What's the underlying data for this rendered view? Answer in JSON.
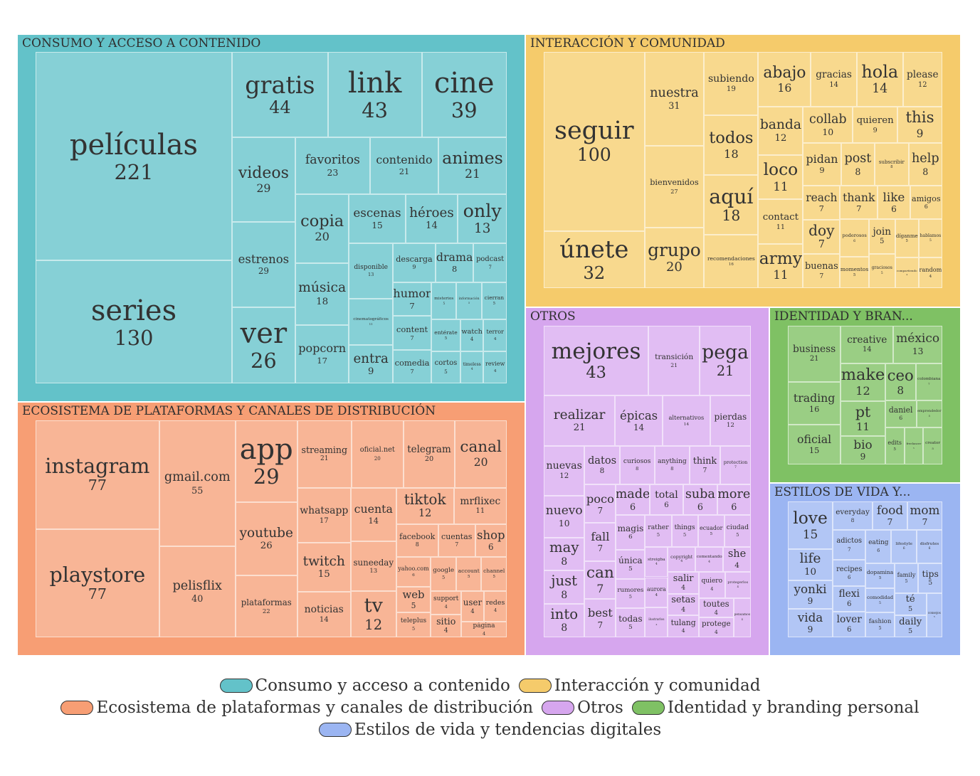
{
  "chart_data": {
    "type": "treemap",
    "legend_position": "bottom",
    "groups": [
      {
        "name": "CONSUMO Y ACCESO A CONTENIDO",
        "legend": "Consumo y acceso a contenido",
        "color": "#63c2c9",
        "cell_color": "#86d0d6",
        "items": [
          {
            "label": "películas",
            "value": 221
          },
          {
            "label": "series",
            "value": 130
          },
          {
            "label": "gratis",
            "value": 44
          },
          {
            "label": "link",
            "value": 43
          },
          {
            "label": "cine",
            "value": 39
          },
          {
            "label": "ver",
            "value": 26
          },
          {
            "label": "favoritos",
            "value": 23
          },
          {
            "label": "videos",
            "value": 29
          },
          {
            "label": "estrenos",
            "value": 29
          },
          {
            "label": "contenido",
            "value": 21
          },
          {
            "label": "animes",
            "value": 21
          },
          {
            "label": "copia",
            "value": 20
          },
          {
            "label": "música",
            "value": 18
          },
          {
            "label": "popcorn",
            "value": 17
          },
          {
            "label": "escenas",
            "value": 15
          },
          {
            "label": "entra",
            "value": 9
          },
          {
            "label": "descarga",
            "value": 9
          },
          {
            "label": "drama",
            "value": 8
          },
          {
            "label": "podcast",
            "value": 7
          },
          {
            "label": "humor",
            "value": 7
          },
          {
            "label": "content",
            "value": 7
          },
          {
            "label": "comedia",
            "value": 7
          },
          {
            "label": "héroes",
            "value": 14
          },
          {
            "label": "only",
            "value": 13
          },
          {
            "label": "misterios",
            "value": 5
          },
          {
            "label": "información",
            "value": 5
          },
          {
            "label": "cierran",
            "value": 5
          },
          {
            "label": "watch",
            "value": 4
          },
          {
            "label": "cinematográficos",
            "value": 11
          },
          {
            "label": "disponible",
            "value": 13
          },
          {
            "label": "entérate",
            "value": 5
          },
          {
            "label": "cortos",
            "value": 5
          },
          {
            "label": "terror",
            "value": 4
          },
          {
            "label": "timeless",
            "value": 4
          },
          {
            "label": "review",
            "value": 4
          }
        ]
      },
      {
        "name": "INTERACCIÓN Y COMUNIDAD",
        "legend": "Interacción y comunidad",
        "color": "#f5cb6b",
        "cell_color": "#f8d98e",
        "items": [
          {
            "label": "seguir",
            "value": 100
          },
          {
            "label": "recomendaciones",
            "value": 16
          },
          {
            "label": "todos",
            "value": 18
          },
          {
            "label": "aquí",
            "value": 18
          },
          {
            "label": "gracias",
            "value": 14
          },
          {
            "label": "please",
            "value": 12
          },
          {
            "label": "banda",
            "value": 12
          },
          {
            "label": "únete",
            "value": 32
          },
          {
            "label": "nuestra",
            "value": 31
          },
          {
            "label": "bienvenidos",
            "value": 27
          },
          {
            "label": "abajo",
            "value": 16
          },
          {
            "label": "hola",
            "value": 14
          },
          {
            "label": "loco",
            "value": 11
          },
          {
            "label": "contact",
            "value": 11
          },
          {
            "label": "army",
            "value": 11
          },
          {
            "label": "grupo",
            "value": 20
          },
          {
            "label": "subiendo",
            "value": 19
          },
          {
            "label": "collab",
            "value": 10
          },
          {
            "label": "quieren",
            "value": 9
          },
          {
            "label": "this",
            "value": 9
          },
          {
            "label": "pidan",
            "value": 9
          },
          {
            "label": "reach",
            "value": 7
          },
          {
            "label": "doy",
            "value": 7
          },
          {
            "label": "like",
            "value": 6
          },
          {
            "label": "buenas",
            "value": 7
          },
          {
            "label": "amigos",
            "value": 6
          },
          {
            "label": "poderosos",
            "value": 6
          },
          {
            "label": "post",
            "value": 8
          },
          {
            "label": "subscribir",
            "value": 8
          },
          {
            "label": "help",
            "value": 8
          },
          {
            "label": "thank",
            "value": 7
          },
          {
            "label": "momentos",
            "value": 5
          },
          {
            "label": "join",
            "value": 5
          },
          {
            "label": "graciosos",
            "value": 5
          },
          {
            "label": "díganme",
            "value": 5
          },
          {
            "label": "hablamos",
            "value": 5
          },
          {
            "label": "compartiendo",
            "value": 4
          },
          {
            "label": "random",
            "value": 4
          }
        ]
      },
      {
        "name": "ECOSISTEMA DE PLATAFORMAS Y CANALES DE DISTRIBUCIÓN",
        "legend": "Ecosistema de plataformas y canales de distribución",
        "color": "#f79e74",
        "cell_color": "#f8b596",
        "items": [
          {
            "label": "instagram",
            "value": 77
          },
          {
            "label": "playstore",
            "value": 77
          },
          {
            "label": "gmail.com",
            "value": 55
          },
          {
            "label": "pelisflix",
            "value": 40
          },
          {
            "label": "app",
            "value": 29
          },
          {
            "label": "youtube",
            "value": 26
          },
          {
            "label": "plataformas",
            "value": 22
          },
          {
            "label": "oficial.net",
            "value": 20
          },
          {
            "label": "whatsapp",
            "value": 17
          },
          {
            "label": "streaming",
            "value": 21
          },
          {
            "label": "telegram",
            "value": 20
          },
          {
            "label": "canal",
            "value": 20
          },
          {
            "label": "twitch",
            "value": 15
          },
          {
            "label": "noticias",
            "value": 14
          },
          {
            "label": "cuenta",
            "value": 14
          },
          {
            "label": "suneeday",
            "value": 13
          },
          {
            "label": "facebook",
            "value": 8
          },
          {
            "label": "shop",
            "value": 6
          },
          {
            "label": "cuentas",
            "value": 7
          },
          {
            "label": "yahoo.com",
            "value": 6
          },
          {
            "label": "web",
            "value": 5
          },
          {
            "label": "teleplus",
            "value": 5
          },
          {
            "label": "tv",
            "value": 12
          },
          {
            "label": "tiktok",
            "value": 12
          },
          {
            "label": "mrflixec",
            "value": 11
          },
          {
            "label": "google",
            "value": 5
          },
          {
            "label": "account",
            "value": 5
          },
          {
            "label": "support",
            "value": 4
          },
          {
            "label": "sitio",
            "value": 4
          },
          {
            "label": "channel",
            "value": 5
          },
          {
            "label": "user",
            "value": 4
          },
          {
            "label": "redes",
            "value": 4
          },
          {
            "label": "página",
            "value": 4
          }
        ]
      },
      {
        "name": "OTROS",
        "legend": "Otros",
        "color": "#d6a6ee",
        "cell_color": "#e1bdf3",
        "items": [
          {
            "label": "mejores",
            "value": 43
          },
          {
            "label": "épicas",
            "value": 14
          },
          {
            "label": "alternativos",
            "value": 14
          },
          {
            "label": "pierdas",
            "value": 12
          },
          {
            "label": "transición",
            "value": 21
          },
          {
            "label": "pega",
            "value": 21
          },
          {
            "label": "nuevas",
            "value": 12
          },
          {
            "label": "may",
            "value": 8
          },
          {
            "label": "just",
            "value": 8
          },
          {
            "label": "realizar",
            "value": 21
          },
          {
            "label": "nuevo",
            "value": 10
          },
          {
            "label": "into",
            "value": 8
          },
          {
            "label": "datos",
            "value": 8
          },
          {
            "label": "think",
            "value": 7
          },
          {
            "label": "protection",
            "value": 7
          },
          {
            "label": "made",
            "value": 6
          },
          {
            "label": "única",
            "value": 5
          },
          {
            "label": "rumores",
            "value": 5
          },
          {
            "label": "streigba",
            "value": 4
          },
          {
            "label": "curiosos",
            "value": 8
          },
          {
            "label": "todas",
            "value": 5
          },
          {
            "label": "rather",
            "value": 5
          },
          {
            "label": "anything",
            "value": 8
          },
          {
            "label": "poco",
            "value": 7
          },
          {
            "label": "fall",
            "value": 7
          },
          {
            "label": "things",
            "value": 5
          },
          {
            "label": "aurora",
            "value": 4
          },
          {
            "label": "ilustrarlos",
            "value": 4
          },
          {
            "label": "ecuador",
            "value": 5
          },
          {
            "label": "copyright",
            "value": 4
          },
          {
            "label": "can",
            "value": 7
          },
          {
            "label": "total",
            "value": 6
          },
          {
            "label": "suba",
            "value": 6
          },
          {
            "label": "comentando",
            "value": 4
          },
          {
            "label": "ciudad",
            "value": 5
          },
          {
            "label": "she",
            "value": 4
          },
          {
            "label": "salir",
            "value": 4
          },
          {
            "label": "setas",
            "value": 4
          },
          {
            "label": "tulang",
            "value": 4
          },
          {
            "label": "quiero",
            "value": 4
          },
          {
            "label": "best",
            "value": 7
          },
          {
            "label": "more",
            "value": 6
          },
          {
            "label": "magis",
            "value": 6
          },
          {
            "label": "protegerlos",
            "value": 4
          },
          {
            "label": "toutes",
            "value": 4
          },
          {
            "label": "protege",
            "value": 4
          },
          {
            "label": "pensamos",
            "value": 4
          }
        ]
      },
      {
        "name": "IDENTIDAD Y BRAN...",
        "legend": "Identidad y branding personal",
        "color": "#7fc164",
        "cell_color": "#9ace84",
        "items": [
          {
            "label": "business",
            "value": 21
          },
          {
            "label": "trading",
            "value": 16
          },
          {
            "label": "make",
            "value": 12
          },
          {
            "label": "pt",
            "value": 11
          },
          {
            "label": "bio",
            "value": 9
          },
          {
            "label": "ceo",
            "value": 8
          },
          {
            "label": "creative",
            "value": 14
          },
          {
            "label": "colombiana",
            "value": 7
          },
          {
            "label": "emprendedor",
            "value": 5
          },
          {
            "label": "oficial",
            "value": 15
          },
          {
            "label": "edits",
            "value": 5
          },
          {
            "label": "méxico",
            "value": 13
          },
          {
            "label": "daniel",
            "value": 6
          },
          {
            "label": "freelancer",
            "value": 5
          },
          {
            "label": "creator",
            "value": 5
          }
        ]
      },
      {
        "name": "ESTILOS DE VIDA Y...",
        "legend": "Estilos de vida y tendencias digitales",
        "color": "#9bb5f2",
        "cell_color": "#b2c6f5",
        "items": [
          {
            "label": "love",
            "value": 15
          },
          {
            "label": "yonki",
            "value": 9
          },
          {
            "label": "recipes",
            "value": 6
          },
          {
            "label": "flexi",
            "value": 6
          },
          {
            "label": "lover",
            "value": 6
          },
          {
            "label": "eating",
            "value": 6
          },
          {
            "label": "life",
            "value": 10
          },
          {
            "label": "vida",
            "value": 9
          },
          {
            "label": "lifestyle",
            "value": 6
          },
          {
            "label": "disfrutes",
            "value": 6
          },
          {
            "label": "everyday",
            "value": 8
          },
          {
            "label": "food",
            "value": 7
          },
          {
            "label": "dopamina",
            "value": 5
          },
          {
            "label": "comodidad",
            "value": 5
          },
          {
            "label": "fashion",
            "value": 5
          },
          {
            "label": "family",
            "value": 5
          },
          {
            "label": "tips",
            "value": 5
          },
          {
            "label": "mom",
            "value": 7
          },
          {
            "label": "adictos",
            "value": 7
          },
          {
            "label": "té",
            "value": 5
          },
          {
            "label": "daily",
            "value": 5
          },
          {
            "label": "consejos",
            "value": 5
          }
        ]
      }
    ]
  }
}
